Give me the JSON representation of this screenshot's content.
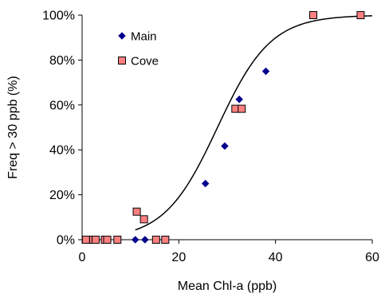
{
  "chart_data": {
    "type": "scatter",
    "title": "",
    "xlabel": "Mean Chl-a (ppb)",
    "ylabel": "Freq > 30 ppb (%)",
    "xlim": [
      0,
      60
    ],
    "ylim": [
      0,
      100
    ],
    "x_ticks": [
      0,
      20,
      40,
      60
    ],
    "x_tick_labels": [
      "0",
      "20",
      "40",
      "60"
    ],
    "y_ticks": [
      0,
      20,
      40,
      60,
      80,
      100
    ],
    "y_tick_labels": [
      "0%",
      "20%",
      "40%",
      "60%",
      "80%",
      "100%"
    ],
    "grid": false,
    "legend_position": "top-left",
    "series": [
      {
        "name": "Main",
        "marker": "diamond",
        "color": "#00008B",
        "points": [
          {
            "x": 11,
            "y": 0
          },
          {
            "x": 13,
            "y": 0
          },
          {
            "x": 25.5,
            "y": 25
          },
          {
            "x": 29.5,
            "y": 41.7
          },
          {
            "x": 32.5,
            "y": 62.5
          },
          {
            "x": 38,
            "y": 75
          }
        ]
      },
      {
        "name": "Cove",
        "marker": "square",
        "color": "#FF8080",
        "stroke": "#000000",
        "points": [
          {
            "x": 0.8,
            "y": 0
          },
          {
            "x": 2.3,
            "y": 0
          },
          {
            "x": 2.8,
            "y": 0
          },
          {
            "x": 4.7,
            "y": 0
          },
          {
            "x": 5.2,
            "y": 0
          },
          {
            "x": 7.3,
            "y": 0
          },
          {
            "x": 11.3,
            "y": 12.5
          },
          {
            "x": 12.8,
            "y": 9.1
          },
          {
            "x": 15.3,
            "y": 0
          },
          {
            "x": 17.2,
            "y": 0
          },
          {
            "x": 31.7,
            "y": 58.3
          },
          {
            "x": 33.0,
            "y": 58.3
          },
          {
            "x": 47.8,
            "y": 100
          },
          {
            "x": 57.6,
            "y": 100
          }
        ]
      }
    ],
    "fit_curve": {
      "type": "logistic",
      "color": "#000000",
      "midpoint": 28,
      "scale": 5.5,
      "x_start": 11,
      "x_end": 60
    }
  }
}
